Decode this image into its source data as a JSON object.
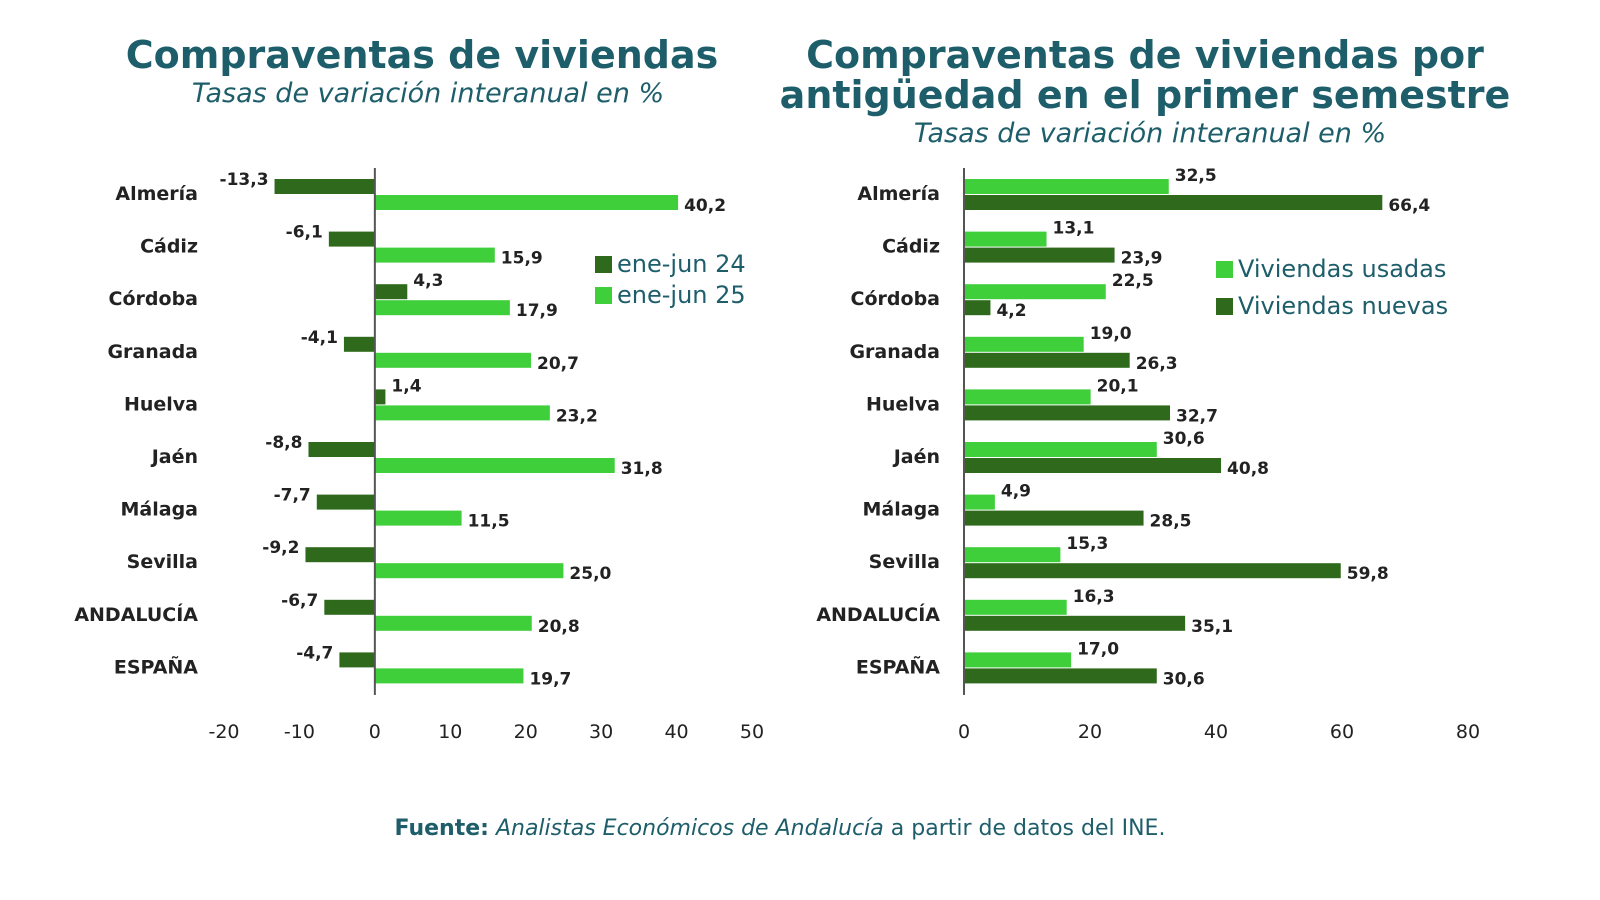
{
  "source": {
    "prefix": "Fuente:",
    "italic": "Analistas Económicos de Andalucía",
    "suffix": " a partir de datos del INE."
  },
  "chart_data": [
    {
      "type": "bar",
      "orientation": "horizontal",
      "title": "Compraventas de viviendas",
      "subtitle": "Tasas de variación interanual en %",
      "categories": [
        "Almería",
        "Cádiz",
        "Córdoba",
        "Granada",
        "Huelva",
        "Jaén",
        "Málaga",
        "Sevilla",
        "ANDALUCÍA",
        "ESPAÑA"
      ],
      "series": [
        {
          "name": "ene-jun 24",
          "color": "#2f6a1c",
          "values": [
            -13.3,
            -6.1,
            4.3,
            -4.1,
            1.4,
            -8.8,
            -7.7,
            -9.2,
            -6.7,
            -4.7
          ],
          "labels": [
            "-13,3",
            "-6,1",
            "4,3",
            "-4,1",
            "1,4",
            "-8,8",
            "-7,7",
            "-9,2",
            "-6,7",
            "-4,7"
          ]
        },
        {
          "name": "ene-jun 25",
          "color": "#3ecf3a",
          "values": [
            40.2,
            15.9,
            17.9,
            20.7,
            23.2,
            31.8,
            11.5,
            25.0,
            20.8,
            19.7
          ],
          "labels": [
            "40,2",
            "15,9",
            "17,9",
            "20,7",
            "23,2",
            "31,8",
            "11,5",
            "25,0",
            "20,8",
            "19,7"
          ]
        }
      ],
      "xlim": [
        -20,
        50
      ],
      "xticks": [
        "-20",
        "-10",
        "0",
        "10",
        "20",
        "30",
        "40",
        "50"
      ],
      "grid": false,
      "legend": "right"
    },
    {
      "type": "bar",
      "orientation": "horizontal",
      "title": [
        "Compraventas de viviendas por",
        "antigüedad en el primer semestre"
      ],
      "subtitle": "Tasas de variación interanual en %",
      "categories": [
        "Almería",
        "Cádiz",
        "Córdoba",
        "Granada",
        "Huelva",
        "Jaén",
        "Málaga",
        "Sevilla",
        "ANDALUCÍA",
        "ESPAÑA"
      ],
      "series": [
        {
          "name": "Viviendas usadas",
          "color": "#3ecf3a",
          "values": [
            32.5,
            13.1,
            22.5,
            19.0,
            20.1,
            30.6,
            4.9,
            15.3,
            16.3,
            17.0
          ],
          "labels": [
            "32,5",
            "13,1",
            "22,5",
            "19,0",
            "20,1",
            "30,6",
            "4,9",
            "15,3",
            "16,3",
            "17,0"
          ]
        },
        {
          "name": "Viviendas nuevas",
          "color": "#2f6a1c",
          "values": [
            66.4,
            23.9,
            4.2,
            26.3,
            32.7,
            40.8,
            28.5,
            59.8,
            35.1,
            30.6
          ],
          "labels": [
            "66,4",
            "23,9",
            "4,2",
            "26,3",
            "32,7",
            "40,8",
            "28,5",
            "59,8",
            "35,1",
            "30,6"
          ]
        }
      ],
      "xlim": [
        0,
        80
      ],
      "xticks": [
        "0",
        "20",
        "40",
        "60",
        "80"
      ],
      "grid": false,
      "legend": "right"
    }
  ]
}
